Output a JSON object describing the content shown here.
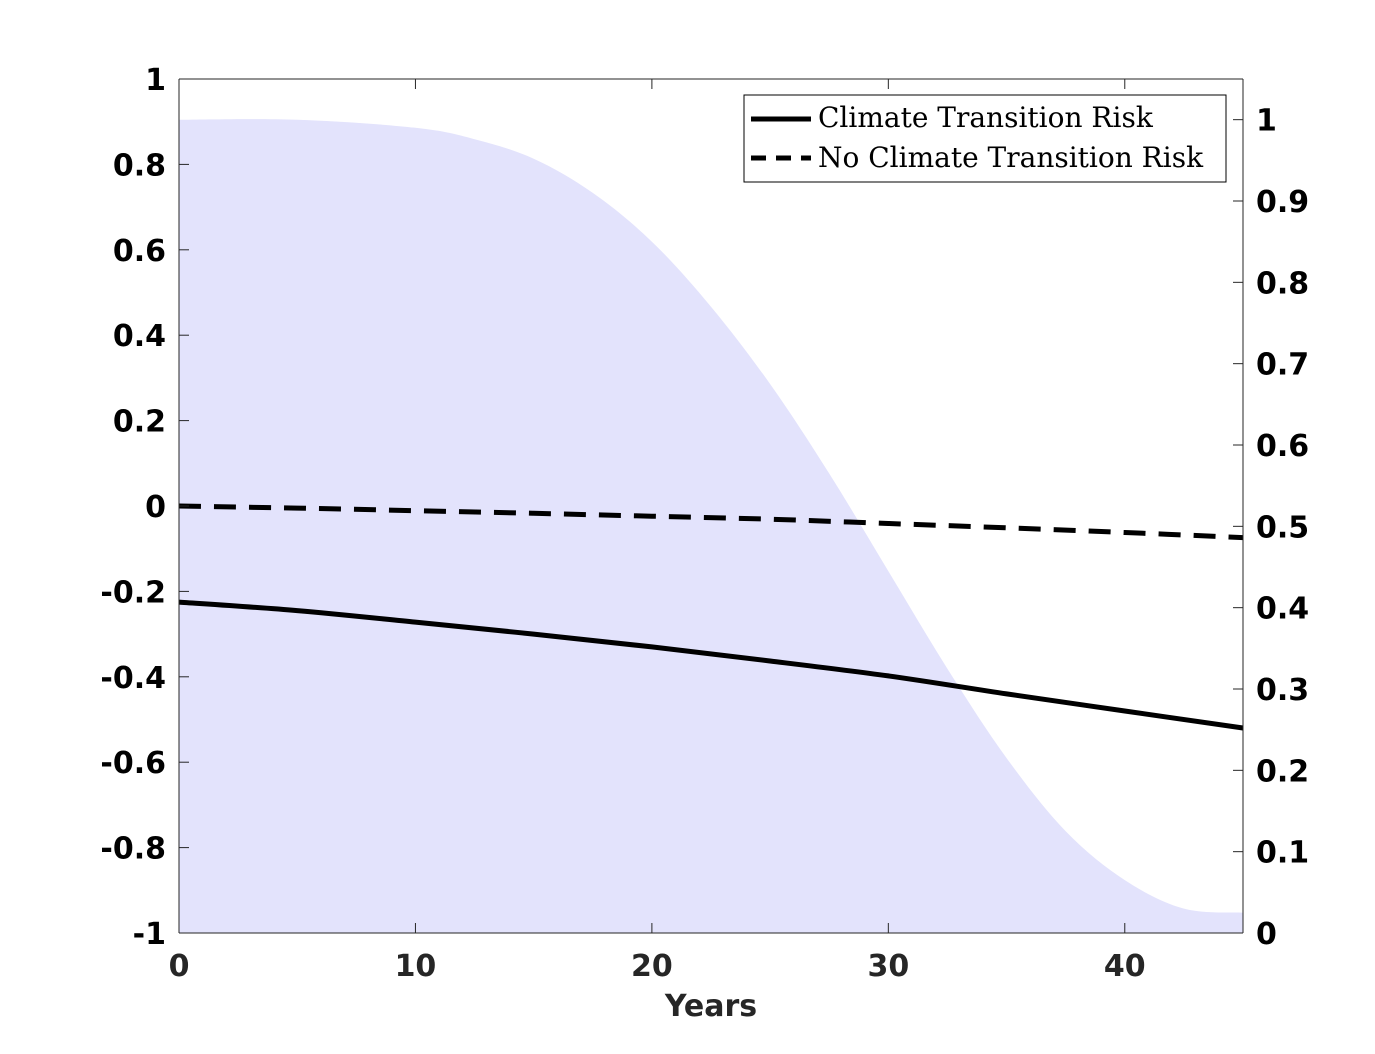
{
  "chart_data": {
    "type": "line",
    "title": "",
    "xlabel": "Years",
    "ylabel_left": "",
    "ylabel_right": "",
    "xlim": [
      0,
      45
    ],
    "ylim_left": [
      -1,
      1
    ],
    "ylim_right": [
      0,
      1.05
    ],
    "x_ticks": [
      0,
      10,
      20,
      30,
      40
    ],
    "y_left_ticks": [
      1,
      0.8,
      0.6,
      0.4,
      0.2,
      0,
      -0.2,
      -0.4,
      -0.6,
      -0.8,
      -1
    ],
    "y_right_ticks": [
      1,
      0.9,
      0.8,
      0.7,
      0.6,
      0.5,
      0.4,
      0.3,
      0.2,
      0.1,
      0
    ],
    "x_tick_labels": [
      "0",
      "10",
      "20",
      "30",
      "40"
    ],
    "y_left_tick_labels": [
      "1",
      "0.8",
      "0.6",
      "0.4",
      "0.2",
      "0",
      "-0.2",
      "-0.4",
      "-0.6",
      "-0.8",
      "-1"
    ],
    "y_right_tick_labels": [
      "1",
      "0.9",
      "0.8",
      "0.7",
      "0.6",
      "0.5",
      "0.4",
      "0.3",
      "0.2",
      "0.1",
      "0"
    ],
    "grid": false,
    "legend_position": "top-right",
    "series": [
      {
        "name": "Climate Transition Risk",
        "axis": "left",
        "style": "solid",
        "color": "#000000",
        "x": [
          0,
          5,
          10,
          15,
          20,
          25,
          30,
          35,
          40,
          45
        ],
        "y": [
          -0.225,
          -0.245,
          -0.272,
          -0.3,
          -0.33,
          -0.363,
          -0.398,
          -0.44,
          -0.48,
          -0.52
        ]
      },
      {
        "name": "No Climate Transition Risk",
        "axis": "left",
        "style": "dashed",
        "color": "#000000",
        "x": [
          0,
          5,
          10,
          15,
          20,
          25,
          30,
          35,
          40,
          45
        ],
        "y": [
          0,
          -0.005,
          -0.011,
          -0.017,
          -0.024,
          -0.031,
          -0.041,
          -0.051,
          -0.062,
          -0.074
        ]
      }
    ],
    "shaded_area": {
      "axis": "right",
      "color": "#e3e3fc",
      "x": [
        0,
        5,
        10,
        12.5,
        15,
        17.5,
        20,
        22.5,
        25,
        27.5,
        30,
        32.5,
        35,
        37.5,
        40,
        42.5,
        45
      ],
      "y": [
        1,
        1,
        0.99,
        0.976,
        0.952,
        0.91,
        0.85,
        0.77,
        0.675,
        0.565,
        0.445,
        0.325,
        0.215,
        0.125,
        0.065,
        0.03,
        0.025
      ]
    }
  }
}
